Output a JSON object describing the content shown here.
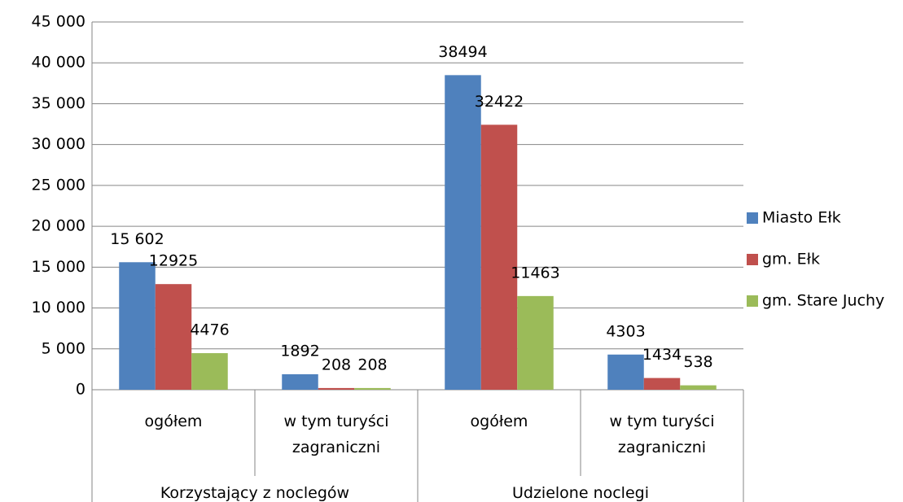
{
  "chart_data": {
    "type": "bar",
    "categories": [
      "ogółem",
      "w tym turyści zagraniczni",
      "ogółem",
      "w tym turyści zagraniczni"
    ],
    "groups": [
      {
        "label": "Korzystający z noclegów",
        "span": 2
      },
      {
        "label": "Udzielone noclegi",
        "span": 2
      }
    ],
    "series": [
      {
        "name": "Miasto Ełk",
        "color": "#4f81bd",
        "values": [
          15602,
          1892,
          38494,
          4303
        ],
        "value_labels": [
          "15 602",
          "1892",
          "38494",
          "4303"
        ]
      },
      {
        "name": "gm. Ełk",
        "color": "#c0504d",
        "values": [
          12925,
          208,
          32422,
          1434
        ]
      },
      {
        "name": "gm. Stare Juchy",
        "color": "#9bbb59",
        "values": [
          4476,
          208,
          11463,
          538
        ]
      }
    ],
    "ylim": [
      0,
      45000
    ],
    "yticks": [
      0,
      {
        "value": 5000,
        "label": "5 000"
      },
      {
        "value": 10000,
        "label": "10 000"
      },
      {
        "value": 15000,
        "label": "15 000"
      },
      {
        "value": 20000,
        "label": "20 000"
      },
      {
        "value": 25000,
        "label": "25 000"
      },
      {
        "value": 30000,
        "label": "30 000"
      },
      {
        "value": 35000,
        "label": "35 000"
      },
      {
        "value": 40000,
        "label": "40 000"
      },
      {
        "value": 45000,
        "label": "45 000"
      }
    ],
    "grid": true,
    "legend": "right"
  }
}
